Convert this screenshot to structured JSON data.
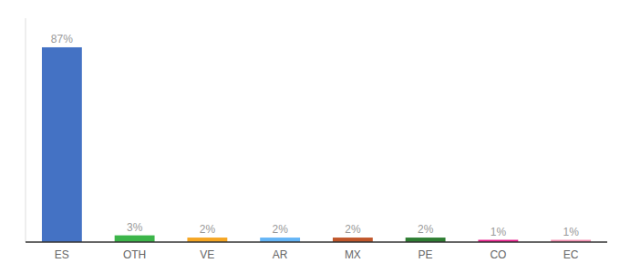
{
  "chart_data": {
    "type": "bar",
    "categories": [
      "ES",
      "OTH",
      "VE",
      "AR",
      "MX",
      "PE",
      "CO",
      "EC"
    ],
    "values": [
      87,
      3,
      2,
      2,
      2,
      2,
      1,
      1
    ],
    "value_labels": [
      "87%",
      "3%",
      "2%",
      "2%",
      "2%",
      "2%",
      "1%",
      "1%"
    ],
    "colors": [
      "#4472C4",
      "#3CB54A",
      "#F5A623",
      "#64B5F6",
      "#C0562A",
      "#2E7D32",
      "#E91E8C",
      "#F48FB1"
    ],
    "ylim": [
      0,
      100
    ],
    "data_labels": true,
    "tick_labels": "x"
  }
}
